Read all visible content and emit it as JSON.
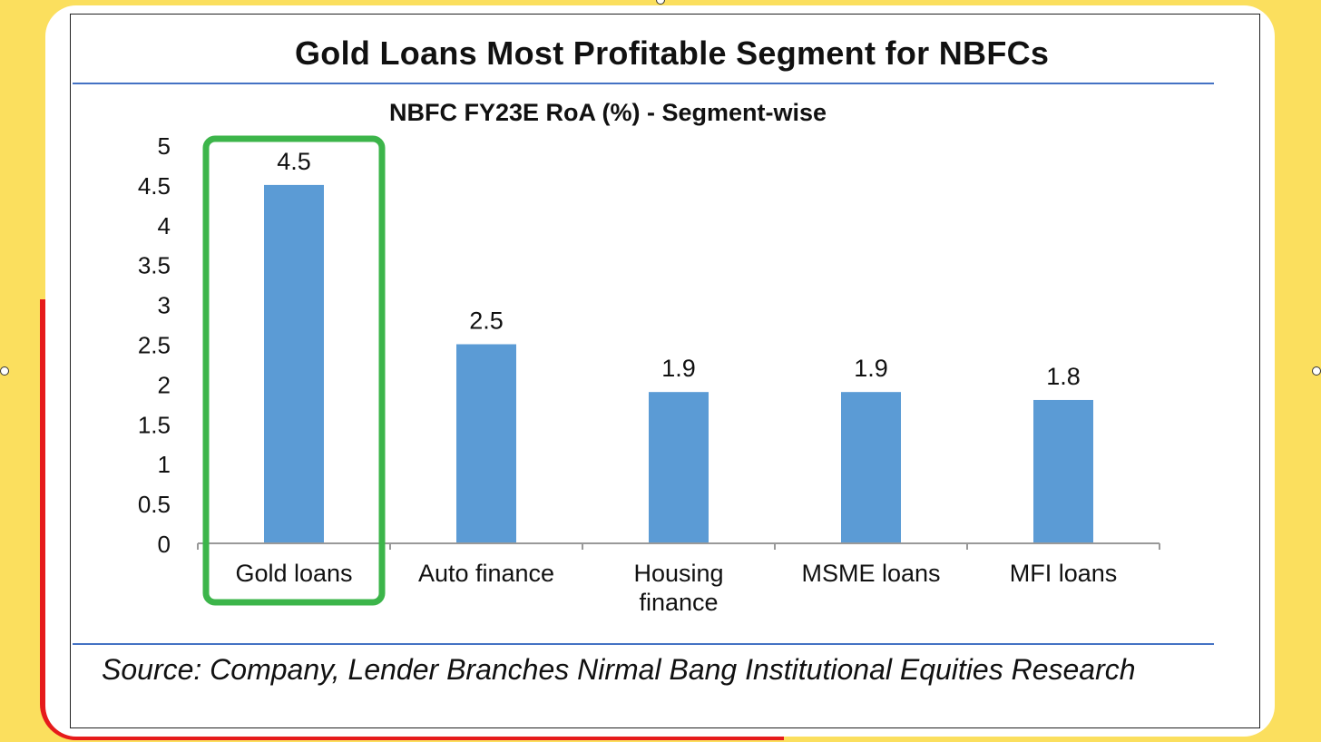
{
  "header": {
    "title": "Gold Loans Most Profitable Segment for NBFCs"
  },
  "chart_data": {
    "type": "bar",
    "title": "NBFC FY23E RoA (%) - Segment-wise",
    "categories": [
      "Gold loans",
      "Auto finance",
      "Housing finance",
      "MSME loans",
      "MFI loans"
    ],
    "category_lines": [
      [
        "Gold loans"
      ],
      [
        "Auto finance"
      ],
      [
        "Housing",
        "finance"
      ],
      [
        "MSME loans"
      ],
      [
        "MFI loans"
      ]
    ],
    "values": [
      4.5,
      2.5,
      1.9,
      1.9,
      1.8
    ],
    "value_labels": [
      "4.5",
      "2.5",
      "1.9",
      "1.9",
      "1.8"
    ],
    "yticks": [
      "0",
      "0.5",
      "1",
      "1.5",
      "2",
      "2.5",
      "3",
      "3.5",
      "4",
      "4.5",
      "5"
    ],
    "ylim": [
      0,
      5
    ],
    "xlabel": "",
    "ylabel": "",
    "grid": false,
    "bar_color": "#5b9bd5",
    "highlight": {
      "category": "Gold loans",
      "color": "#3cb54a"
    }
  },
  "footer": {
    "source": "Source: Company, Lender Branches Nirmal Bang Institutional Equities Research"
  },
  "colors": {
    "background": "#fbdf5e",
    "frame_accent": "#e61b1b",
    "rule": "#4472c4"
  }
}
